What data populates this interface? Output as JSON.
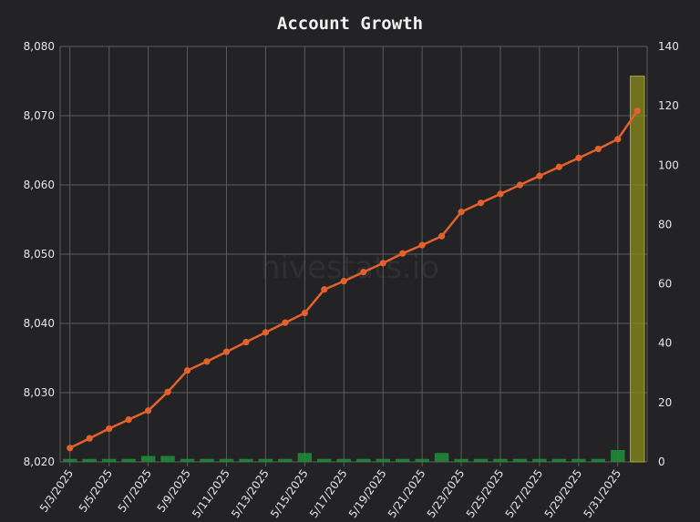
{
  "chart_data": {
    "type": "bar+line",
    "title": "Account Growth",
    "watermark": "hivestats.io",
    "colors": {
      "background": "#232325",
      "grid": "#5c5c5c",
      "line": "#e4612c",
      "bar": "#1f8a3a",
      "bar_highlight": "#8c8c1e"
    },
    "grid": true,
    "x": [
      "5/3/2025",
      "5/4/2025",
      "5/5/2025",
      "5/6/2025",
      "5/7/2025",
      "5/8/2025",
      "5/9/2025",
      "5/10/2025",
      "5/11/2025",
      "5/12/2025",
      "5/13/2025",
      "5/14/2025",
      "5/15/2025",
      "5/16/2025",
      "5/17/2025",
      "5/18/2025",
      "5/19/2025",
      "5/20/2025",
      "5/21/2025",
      "5/22/2025",
      "5/23/2025",
      "5/24/2025",
      "5/25/2025",
      "5/26/2025",
      "5/27/2025",
      "5/28/2025",
      "5/29/2025",
      "5/30/2025",
      "5/31/2025",
      "6/1/2025"
    ],
    "x_tick_labels": [
      "5/3/2025",
      "5/5/2025",
      "5/7/2025",
      "5/9/2025",
      "5/11/2025",
      "5/13/2025",
      "5/15/2025",
      "5/17/2025",
      "5/19/2025",
      "5/21/2025",
      "5/23/2025",
      "5/25/2025",
      "5/27/2025",
      "5/29/2025",
      "5/31/2025"
    ],
    "y_left": {
      "min": 8020,
      "max": 8080,
      "ticks": [
        "8,020",
        "8,030",
        "8,040",
        "8,050",
        "8,060",
        "8,070",
        "8,080"
      ]
    },
    "y_right": {
      "min": 0,
      "max": 140,
      "ticks": [
        "0",
        "20",
        "40",
        "60",
        "80",
        "100",
        "120",
        "140"
      ]
    },
    "series": [
      {
        "kind": "line",
        "axis": "left",
        "values": [
          8022,
          8023.4,
          8024.8,
          8026.1,
          8027.4,
          8030.1,
          8033.2,
          8034.5,
          8035.9,
          8037.3,
          8038.7,
          8040.1,
          8041.5,
          8044.9,
          8046.1,
          8047.4,
          8048.7,
          8050.1,
          8051.3,
          8052.6,
          8056.1,
          8057.4,
          8058.7,
          8060,
          8061.3,
          8062.6,
          8063.9,
          8065.2,
          8066.6,
          8070.7
        ]
      },
      {
        "kind": "bar",
        "axis": "right",
        "values": [
          1,
          1,
          1,
          1,
          2,
          2,
          1,
          1,
          1,
          1,
          1,
          1,
          3,
          1,
          1,
          1,
          1,
          1,
          1,
          3,
          1,
          1,
          1,
          1,
          1,
          1,
          1,
          1,
          4,
          130
        ],
        "highlight_index": 29
      }
    ]
  }
}
